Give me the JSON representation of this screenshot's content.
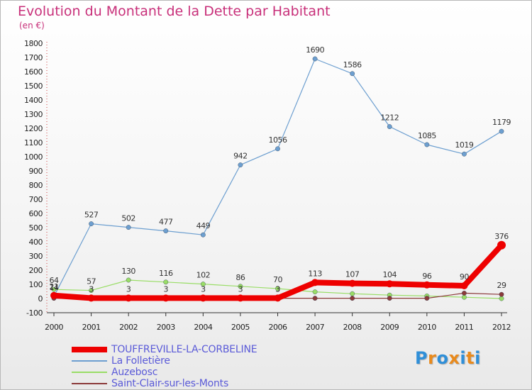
{
  "title": "Evolution du Montant de la Dette par Habitant",
  "subtitle": "(en €)",
  "logo": {
    "text": "Proxiti",
    "colors": [
      "#2f8fd8",
      "#e98a1c",
      "#2f8fd8",
      "#e98a1c",
      "#2f8fd8",
      "#e98a1c",
      "#2f8fd8"
    ]
  },
  "chart_data": {
    "type": "line",
    "x": [
      "2000",
      "2001",
      "2002",
      "2003",
      "2004",
      "2005",
      "2006",
      "2007",
      "2008",
      "2009",
      "2010",
      "2011",
      "2012"
    ],
    "ylim": [
      -100,
      1800
    ],
    "yticks": [
      -100,
      0,
      100,
      200,
      300,
      400,
      500,
      600,
      700,
      800,
      900,
      1000,
      1100,
      1200,
      1300,
      1400,
      1500,
      1600,
      1700,
      1800
    ],
    "grid": false,
    "legend_position": "bottom-left",
    "series": [
      {
        "name": "TOUFFREVILLE-LA-CORBELINE",
        "color": "#ee0000",
        "values": [
          21,
          3,
          3,
          3,
          3,
          3,
          3,
          113,
          107,
          104,
          96,
          90,
          376
        ],
        "labels": [
          "21",
          "3",
          "3",
          "3",
          "3",
          "3",
          "3",
          "113",
          "107",
          "104",
          "96",
          "90",
          "376"
        ]
      },
      {
        "name": "La Folletière",
        "color": "#6d9fd0",
        "values": [
          14,
          527,
          502,
          477,
          449,
          942,
          1056,
          1690,
          1586,
          1212,
          1085,
          1019,
          1179
        ],
        "labels": [
          "14",
          "527",
          "502",
          "477",
          "449",
          "942",
          "1056",
          "1690",
          "1586",
          "1212",
          "1085",
          "1019",
          "1179"
        ]
      },
      {
        "name": "Auzebosc",
        "color": "#99dd66",
        "values": [
          64,
          57,
          130,
          116,
          102,
          86,
          70,
          47,
          34,
          24,
          18,
          9,
          0
        ],
        "labels": [
          "64",
          "57",
          "130",
          "116",
          "102",
          "86",
          "70",
          "",
          "",
          "",
          "",
          "",
          ""
        ]
      },
      {
        "name": "Saint-Clair-sur-les-Monts",
        "color": "#8b3a3a",
        "values": [
          2,
          2,
          2,
          2,
          2,
          2,
          2,
          2,
          2,
          2,
          2,
          38,
          29
        ],
        "labels": [
          "",
          "",
          "",
          "",
          "",
          "",
          "",
          "",
          "",
          "",
          "",
          "",
          "29"
        ]
      }
    ]
  }
}
